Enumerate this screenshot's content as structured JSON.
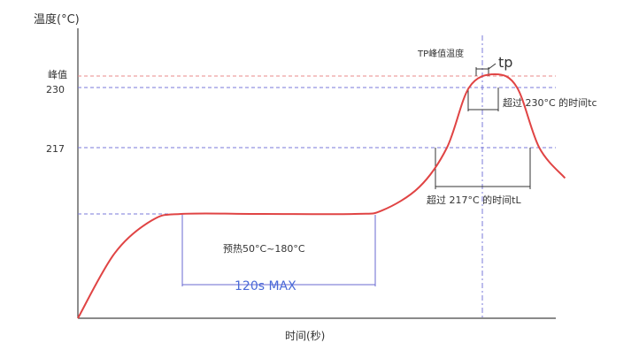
{
  "chart_data": {
    "type": "line",
    "ylabel": "温度(°C)",
    "xlabel": "时间(秒)",
    "y_ticks": [
      {
        "label": "峰值",
        "value": 245
      },
      {
        "label": "230",
        "value": 230
      },
      {
        "label": "217",
        "value": 217
      }
    ],
    "annotations": {
      "peak": "TP峰值温度",
      "tp": "tp",
      "over_230": "超过 230°C 的时间tc",
      "over_217": "超过 217°C 的时间tL",
      "preheat": "预热50°C~180°C",
      "preheat_time": "120s MAX"
    },
    "series": [
      {
        "values_y": [
          100,
          150,
          175,
          180,
          180,
          180,
          182,
          195,
          217,
          230,
          245,
          230,
          217,
          200
        ],
        "values_x": [
          0,
          20,
          40,
          56,
          100,
          150,
          165,
          185,
          200,
          212,
          226,
          238,
          250,
          264
        ]
      }
    ],
    "colors": {
      "curve": "#e04444",
      "peak_line": "#e88a8a",
      "guide": "#7a7ad8",
      "axis": "#444444"
    }
  }
}
